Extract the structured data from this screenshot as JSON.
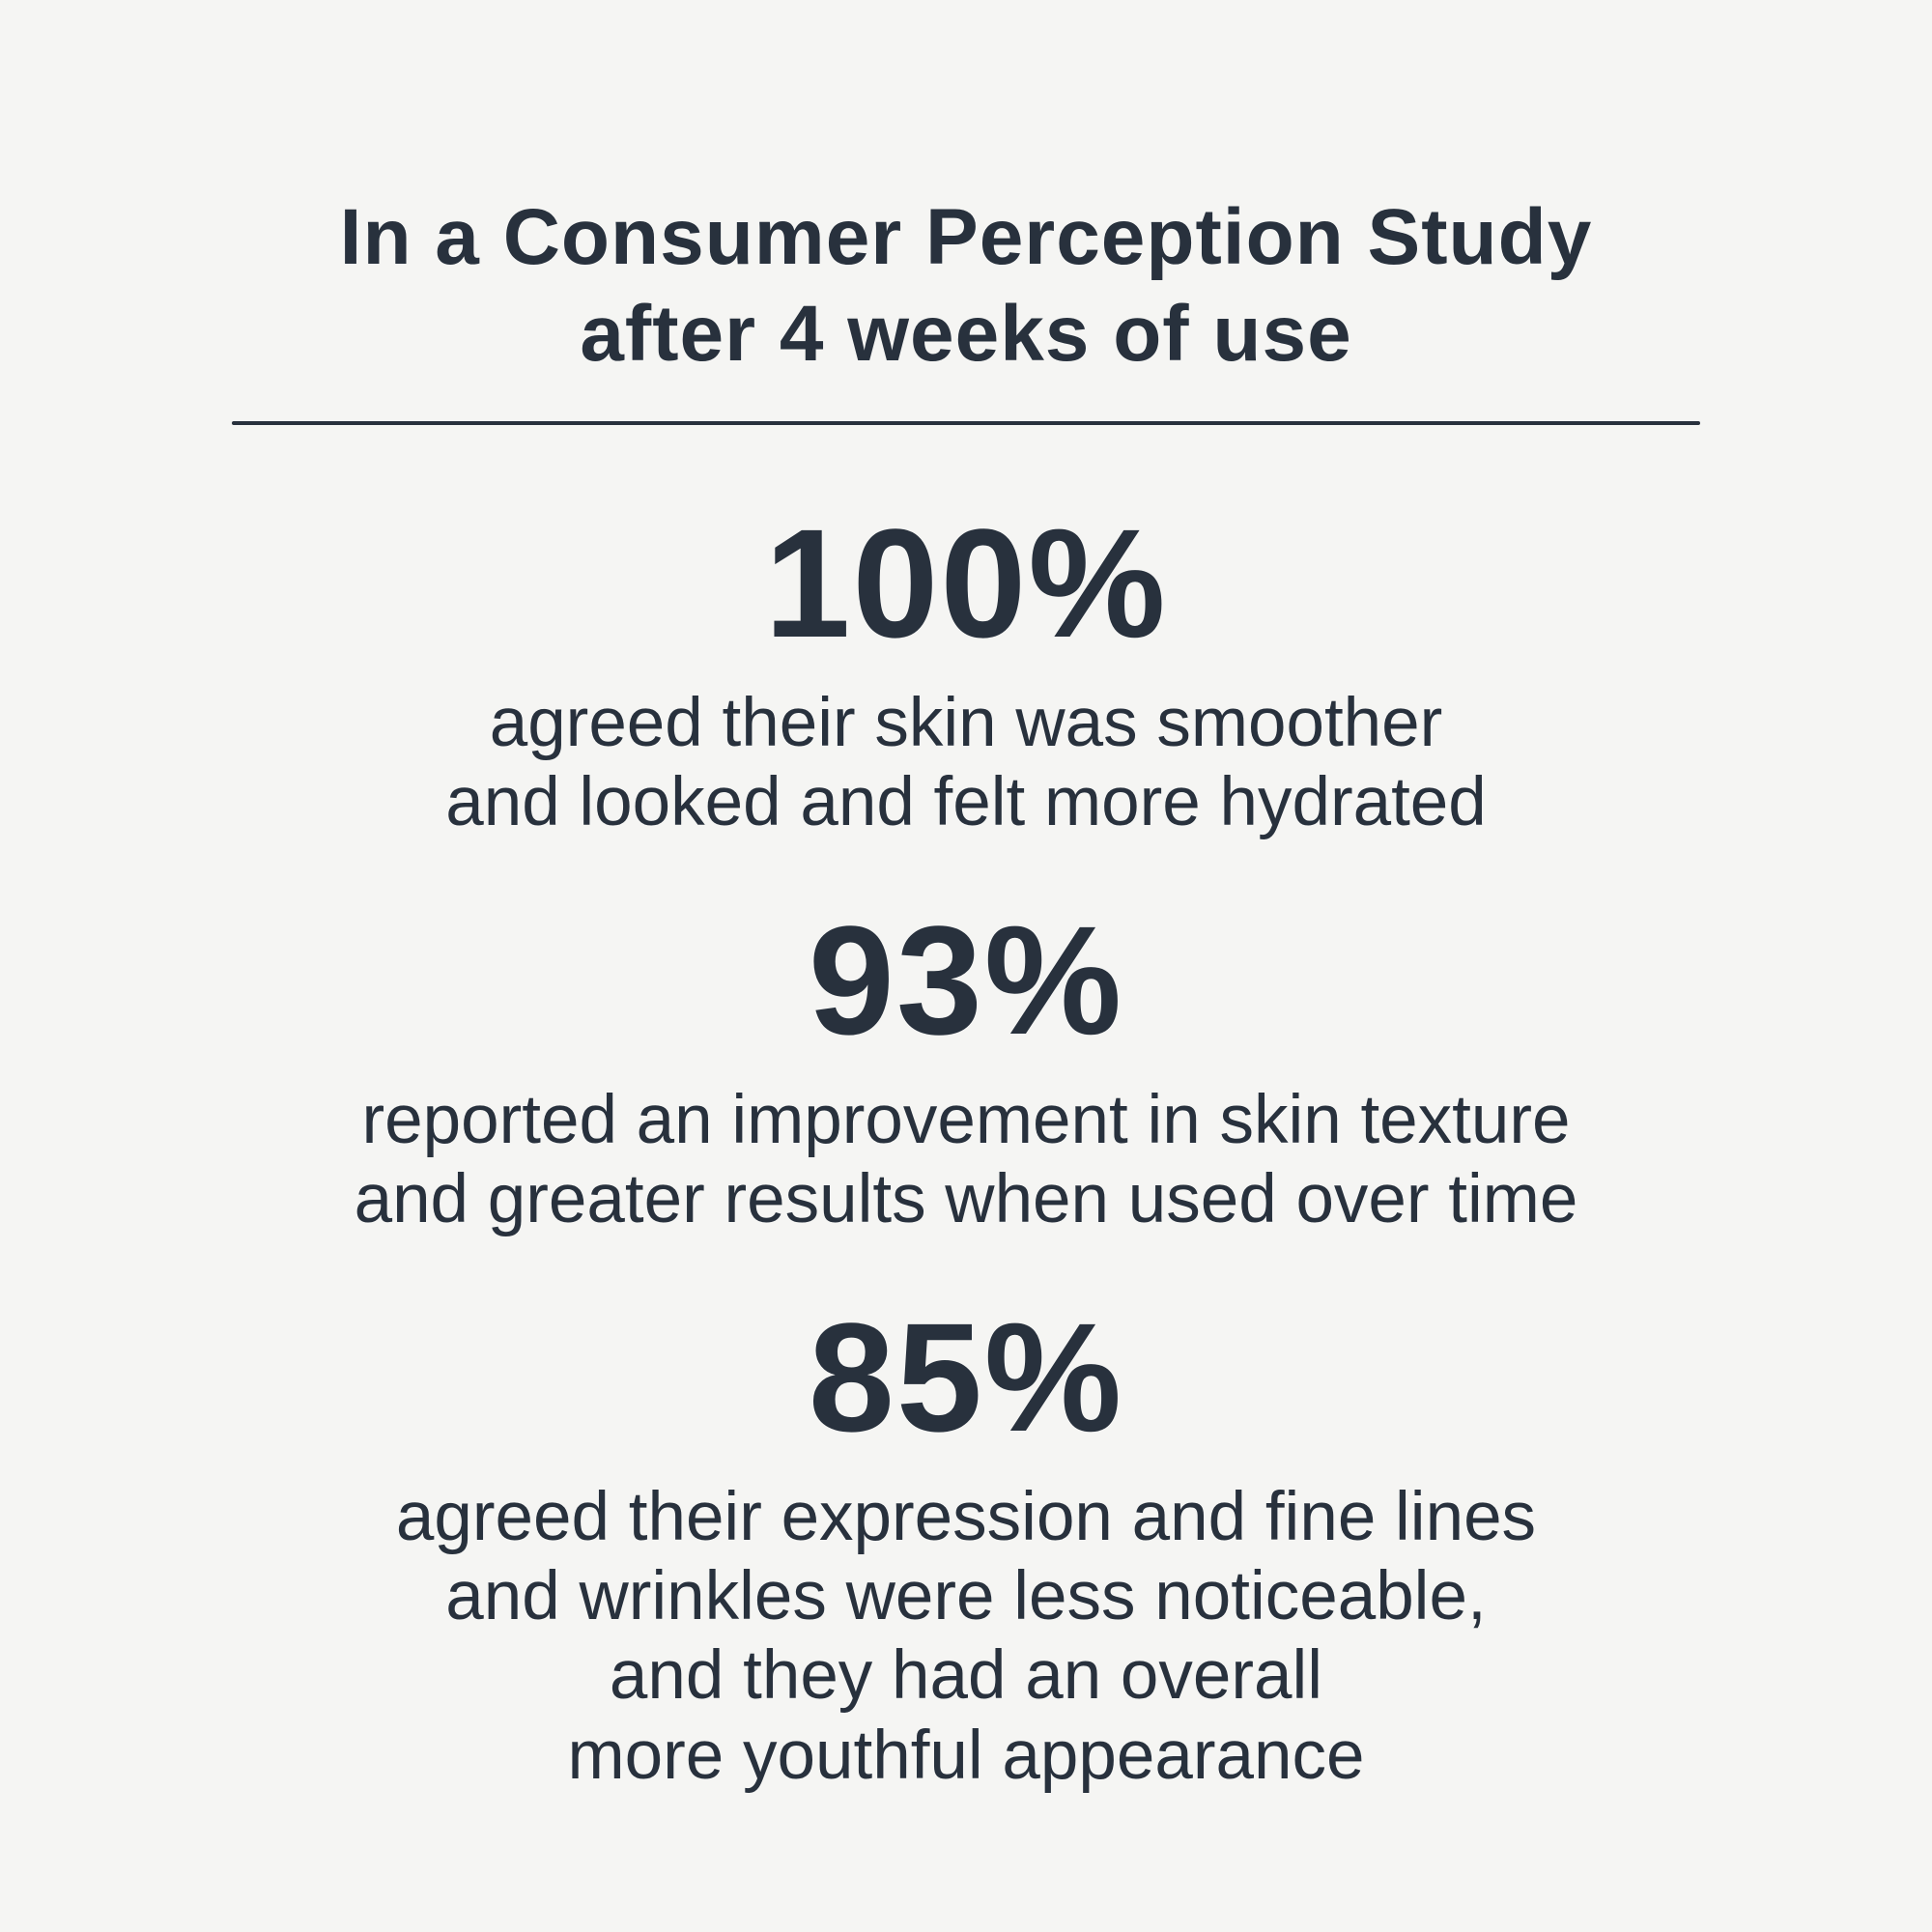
{
  "page": {
    "background_color": "#f5f5f3",
    "text_color": "#28313d"
  },
  "title": {
    "line1": "In a Consumer Perception Study",
    "line2": "after 4 weeks of use"
  },
  "stats": [
    {
      "value": "100%",
      "description": [
        "agreed their skin was smoother",
        "and looked and felt more hydrated"
      ]
    },
    {
      "value": "93%",
      "description": [
        "reported an improvement in skin texture",
        "and greater results when used over time"
      ]
    },
    {
      "value": "85%",
      "description": [
        "agreed their expression and fine lines",
        "and wrinkles were less noticeable,",
        "and they had an overall",
        "more youthful appearance"
      ]
    }
  ]
}
